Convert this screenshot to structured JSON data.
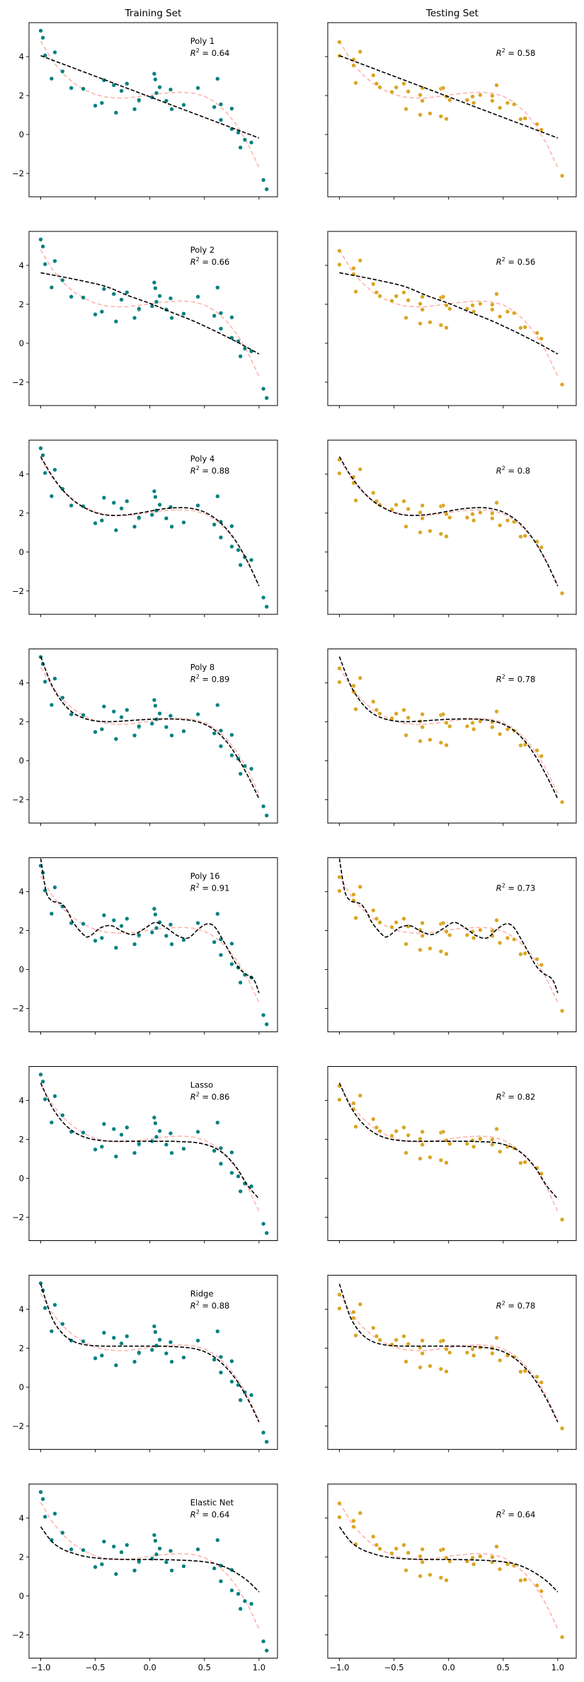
{
  "chart_data": {
    "type": "scatter",
    "title": "",
    "columns": [
      {
        "title": "Training Set",
        "point_color": "#008080"
      },
      {
        "title": "Testing Set",
        "point_color": "#DAA520"
      }
    ],
    "xlim": [
      -1.107,
      1.169
    ],
    "ylim": [
      -3.2,
      5.745
    ],
    "x_ticks": [
      -1.0,
      -0.5,
      0.0,
      0.5,
      1.0
    ],
    "x_tick_labels": [
      "−1.0",
      "−0.5",
      "0.0",
      "0.5",
      "1.0"
    ],
    "y_ticks": [
      -2,
      0,
      2,
      4
    ],
    "y_tick_labels": [
      "−2",
      "0",
      "2",
      "4"
    ],
    "grid": false,
    "colors": {
      "train_points": "#008080",
      "test_points": "#DAA520",
      "true_curve": "#ffb3ad",
      "fit_curve": "#000000"
    },
    "train_points": {
      "x": [
        -1.0,
        -0.98,
        -0.96,
        -0.9,
        -0.87,
        -0.8,
        -0.72,
        -0.61,
        -0.5,
        -0.44,
        -0.42,
        -0.33,
        -0.31,
        -0.26,
        -0.21,
        -0.14,
        -0.1,
        -0.1,
        0.02,
        0.04,
        0.05,
        0.06,
        0.09,
        0.15,
        0.19,
        0.2,
        0.31,
        0.44,
        0.59,
        0.62,
        0.65,
        0.65,
        0.75,
        0.75,
        0.81,
        0.83,
        0.87,
        0.93,
        1.04,
        1.07
      ],
      "y": [
        5.33,
        4.97,
        4.06,
        2.87,
        4.22,
        3.24,
        2.39,
        2.35,
        1.48,
        1.62,
        2.79,
        2.53,
        1.12,
        2.24,
        2.61,
        1.3,
        1.73,
        1.77,
        1.91,
        3.12,
        2.83,
        2.13,
        2.43,
        1.73,
        2.31,
        1.3,
        1.52,
        2.39,
        1.41,
        2.86,
        1.55,
        0.75,
        1.33,
        0.28,
        0.1,
        -0.67,
        -0.27,
        -0.41,
        -2.34,
        -2.81
      ]
    },
    "test_points": {
      "x": [
        -1.0,
        -1.0,
        -0.87,
        -0.87,
        -0.81,
        -0.85,
        -0.69,
        -0.66,
        -0.63,
        -0.52,
        -0.48,
        -0.41,
        -0.39,
        -0.37,
        -0.26,
        -0.26,
        -0.24,
        -0.24,
        -0.17,
        -0.07,
        -0.05,
        -0.07,
        -0.02,
        -0.02,
        0.01,
        0.17,
        0.22,
        0.23,
        0.29,
        0.4,
        0.4,
        0.44,
        0.47,
        0.54,
        0.6,
        0.66,
        0.7,
        0.81,
        0.85,
        1.04
      ],
      "y": [
        4.75,
        4.04,
        3.85,
        3.55,
        4.25,
        2.65,
        3.04,
        2.61,
        2.42,
        2.18,
        2.42,
        2.61,
        1.31,
        2.21,
        2.03,
        1.01,
        2.39,
        1.73,
        1.08,
        2.35,
        2.39,
        0.93,
        1.95,
        0.8,
        1.77,
        1.77,
        1.95,
        1.62,
        2.03,
        1.99,
        1.73,
        2.53,
        1.37,
        1.62,
        1.55,
        0.79,
        0.83,
        0.53,
        0.24,
        -2.12
      ]
    },
    "true_curve": {
      "x": [
        -1.0,
        -0.9,
        -0.8,
        -0.7,
        -0.6,
        -0.5,
        -0.4,
        -0.3,
        -0.2,
        -0.1,
        0.0,
        0.1,
        0.2,
        0.3,
        0.4,
        0.5,
        0.6,
        0.7,
        0.8,
        0.9,
        1.0
      ],
      "y": [
        4.8,
        3.85,
        3.15,
        2.65,
        2.3,
        2.05,
        1.92,
        1.87,
        1.88,
        1.95,
        2.03,
        2.1,
        2.15,
        2.17,
        2.12,
        1.97,
        1.65,
        1.15,
        0.45,
        -0.5,
        -1.7
      ]
    },
    "models": [
      {
        "name": "Poly 1",
        "r2_train": "0.64",
        "r2_test": "0.58",
        "fit": {
          "x": [
            -1.0,
            1.0
          ],
          "y": [
            4.05,
            -0.18
          ]
        }
      },
      {
        "name": "Poly 2",
        "r2_train": "0.66",
        "r2_test": "0.56",
        "fit": {
          "x": [
            -1.0,
            -0.8,
            -0.6,
            -0.4,
            -0.2,
            0.0,
            0.2,
            0.4,
            0.6,
            0.8,
            1.0
          ],
          "y": [
            3.62,
            3.41,
            3.18,
            2.91,
            2.45,
            2.05,
            1.59,
            1.14,
            0.62,
            0.06,
            -0.55
          ]
        }
      },
      {
        "name": "Poly 4",
        "r2_train": "0.88",
        "r2_test": "0.8",
        "fit": {
          "x": [
            -1.0,
            -0.9,
            -0.8,
            -0.7,
            -0.6,
            -0.5,
            -0.4,
            -0.3,
            -0.2,
            -0.1,
            0.0,
            0.1,
            0.2,
            0.3,
            0.4,
            0.5,
            0.6,
            0.7,
            0.8,
            0.9,
            1.0
          ],
          "y": [
            4.9,
            3.95,
            3.2,
            2.65,
            2.28,
            2.03,
            1.9,
            1.88,
            1.92,
            2.0,
            2.1,
            2.2,
            2.26,
            2.28,
            2.22,
            2.05,
            1.72,
            1.2,
            0.45,
            -0.55,
            -1.75
          ]
        }
      },
      {
        "name": "Poly 8",
        "r2_train": "0.89",
        "r2_test": "0.78",
        "fit": {
          "x": [
            -1.0,
            -0.9,
            -0.8,
            -0.7,
            -0.6,
            -0.5,
            -0.4,
            -0.3,
            -0.2,
            -0.1,
            0.0,
            0.1,
            0.2,
            0.3,
            0.4,
            0.5,
            0.6,
            0.7,
            0.8,
            0.9,
            1.0
          ],
          "y": [
            5.35,
            3.9,
            3.0,
            2.45,
            2.18,
            2.05,
            2.01,
            2.02,
            2.06,
            2.1,
            2.13,
            2.15,
            2.15,
            2.12,
            2.05,
            1.88,
            1.55,
            1.0,
            0.2,
            -0.8,
            -1.95
          ]
        }
      },
      {
        "name": "Poly 16",
        "r2_train": "0.91",
        "r2_test": "0.73",
        "fit": {
          "x": [
            -1.0,
            -0.95,
            -0.9,
            -0.85,
            -0.8,
            -0.75,
            -0.7,
            -0.6,
            -0.55,
            -0.45,
            -0.35,
            -0.25,
            -0.15,
            -0.05,
            0.05,
            0.15,
            0.25,
            0.35,
            0.45,
            0.53,
            0.6,
            0.7,
            0.8,
            0.87,
            0.95,
            1.0
          ],
          "y": [
            5.7,
            4.0,
            3.55,
            3.45,
            3.35,
            2.95,
            2.4,
            1.75,
            1.72,
            2.15,
            2.25,
            1.95,
            1.8,
            2.1,
            2.42,
            2.15,
            1.75,
            1.62,
            2.1,
            2.35,
            2.15,
            1.2,
            0.2,
            -0.2,
            -0.5,
            -1.2
          ]
        }
      },
      {
        "name": "Lasso",
        "r2_train": "0.86",
        "r2_test": "0.82",
        "fit": {
          "x": [
            -1.0,
            -0.9,
            -0.8,
            -0.7,
            -0.6,
            -0.5,
            -0.4,
            -0.3,
            -0.2,
            -0.1,
            0.0,
            0.1,
            0.2,
            0.3,
            0.4,
            0.5,
            0.6,
            0.7,
            0.8,
            0.9,
            1.0
          ],
          "y": [
            4.9,
            3.7,
            2.9,
            2.4,
            2.12,
            1.98,
            1.92,
            1.9,
            1.9,
            1.9,
            1.9,
            1.9,
            1.9,
            1.88,
            1.85,
            1.75,
            1.55,
            1.15,
            0.5,
            -0.4,
            -1.05
          ]
        }
      },
      {
        "name": "Ridge",
        "r2_train": "0.88",
        "r2_test": "0.78",
        "fit": {
          "x": [
            -1.0,
            -0.9,
            -0.8,
            -0.7,
            -0.6,
            -0.5,
            -0.4,
            -0.3,
            -0.2,
            -0.1,
            0.0,
            0.1,
            0.2,
            0.3,
            0.4,
            0.5,
            0.6,
            0.7,
            0.8,
            0.9,
            1.0
          ],
          "y": [
            5.3,
            3.6,
            2.75,
            2.35,
            2.18,
            2.12,
            2.1,
            2.1,
            2.1,
            2.1,
            2.1,
            2.1,
            2.08,
            2.05,
            1.98,
            1.82,
            1.5,
            1.0,
            0.3,
            -0.65,
            -1.8
          ]
        }
      },
      {
        "name": "Elastic Net",
        "r2_train": "0.64",
        "r2_test": "0.64",
        "fit": {
          "x": [
            -1.0,
            -0.9,
            -0.8,
            -0.7,
            -0.6,
            -0.5,
            -0.4,
            -0.3,
            -0.2,
            -0.1,
            0.0,
            0.1,
            0.2,
            0.3,
            0.4,
            0.5,
            0.6,
            0.7,
            0.8,
            0.9,
            1.0
          ],
          "y": [
            3.55,
            2.8,
            2.4,
            2.18,
            2.03,
            1.95,
            1.9,
            1.88,
            1.87,
            1.87,
            1.87,
            1.86,
            1.85,
            1.83,
            1.8,
            1.75,
            1.65,
            1.45,
            1.15,
            0.75,
            0.2
          ]
        }
      }
    ],
    "r2_prefix": "R² = "
  }
}
